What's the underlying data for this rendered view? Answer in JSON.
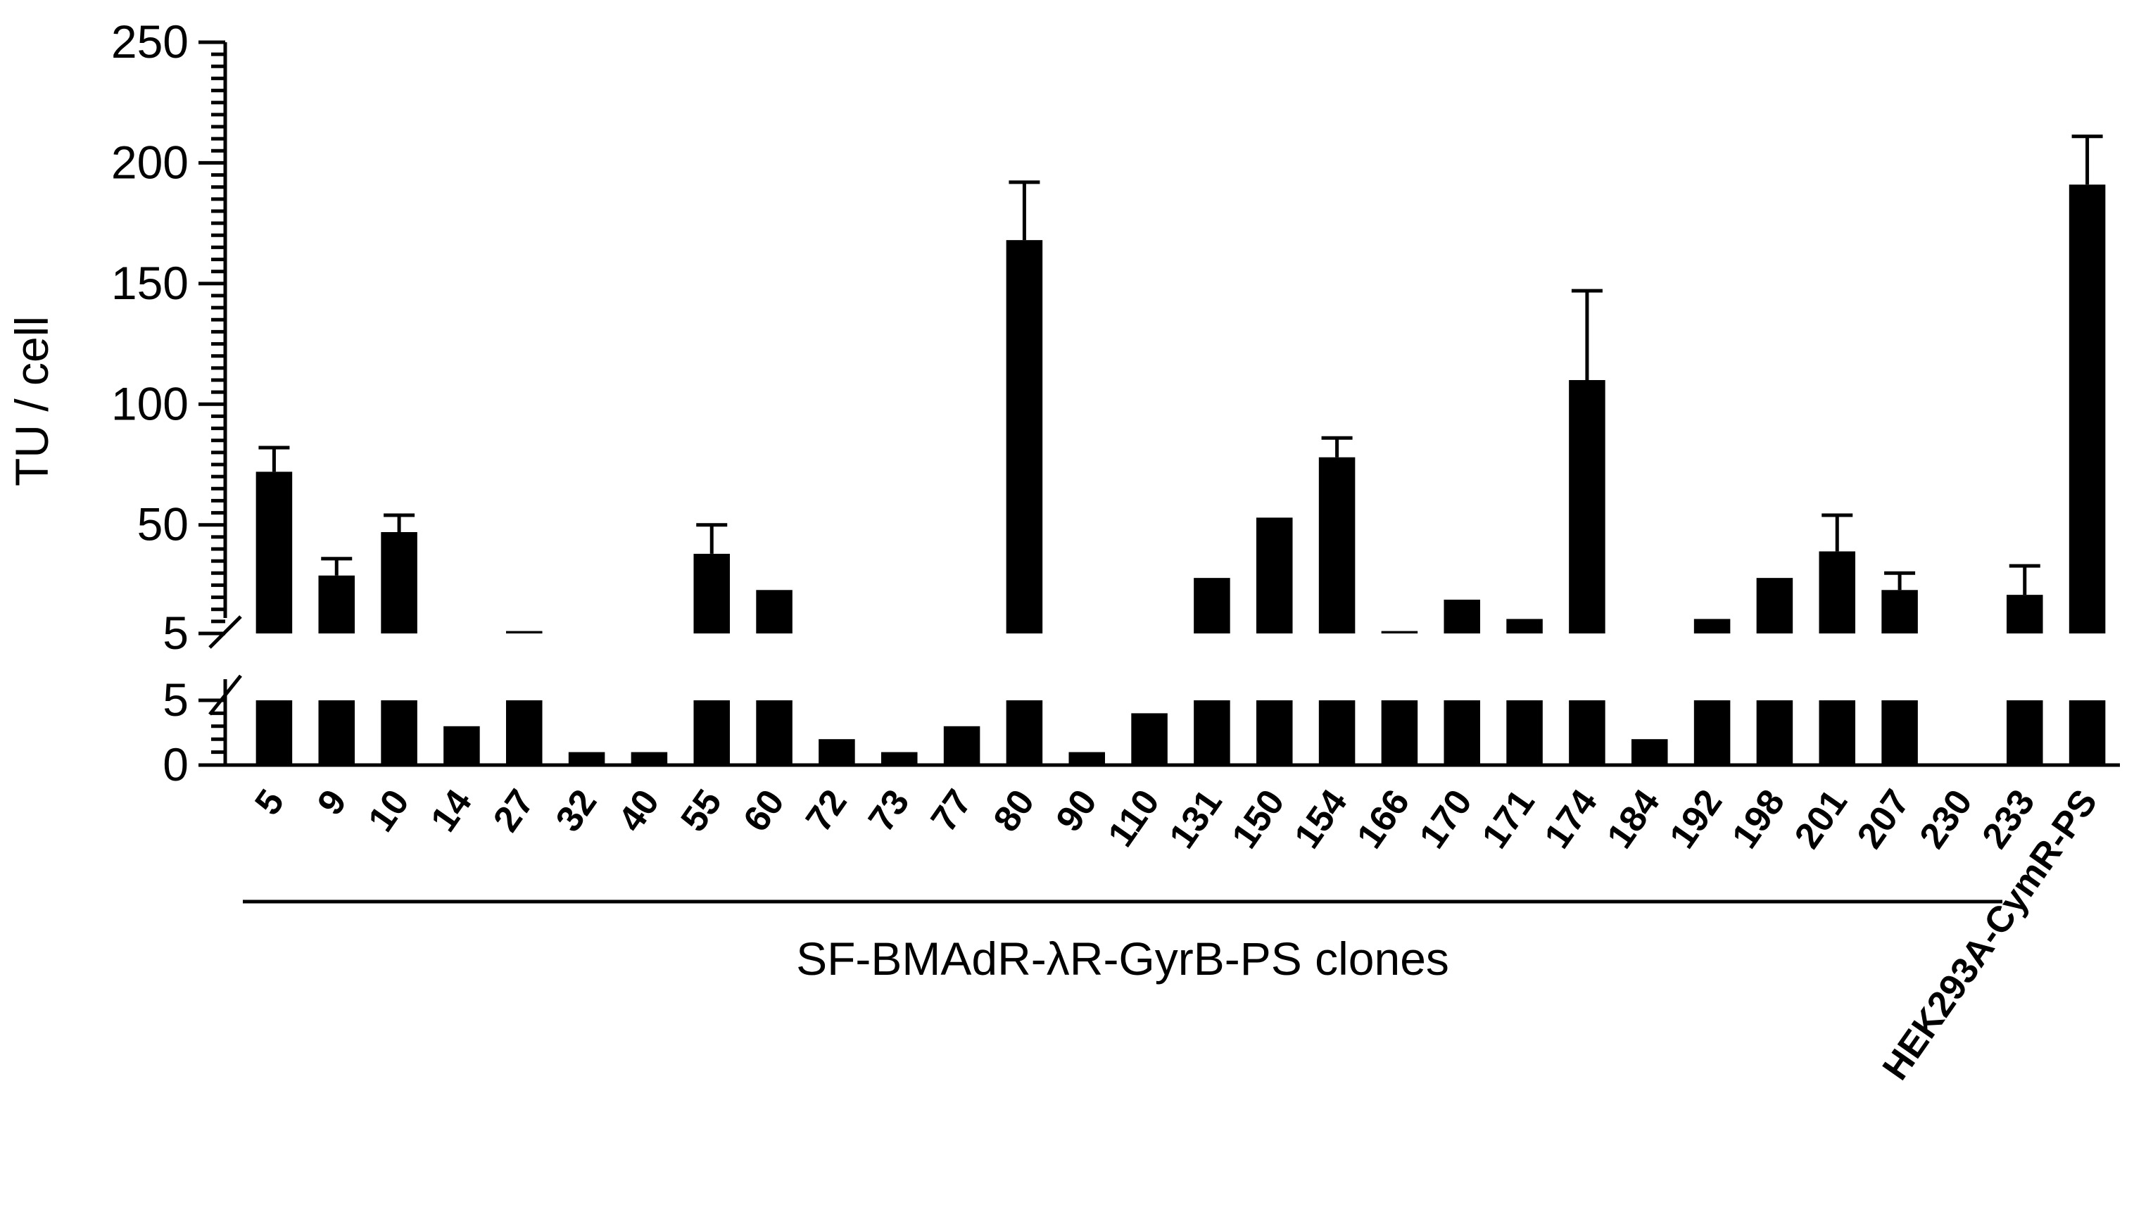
{
  "chart_data": {
    "type": "bar",
    "title": "",
    "ylabel": "TU / cell",
    "group_label": "SF-BMAdR-λR-GyrB-PS clones",
    "categories": [
      "5",
      "9",
      "10",
      "14",
      "27",
      "32",
      "40",
      "55",
      "60",
      "72",
      "73",
      "77",
      "80",
      "90",
      "110",
      "131",
      "150",
      "154",
      "166",
      "170",
      "171",
      "174",
      "184",
      "192",
      "198",
      "201",
      "207",
      "230",
      "233",
      "HEK293A-CymR-PS"
    ],
    "values": [
      72,
      29,
      47,
      3,
      6,
      1,
      1,
      38,
      23,
      2,
      1,
      3,
      168,
      1,
      4,
      28,
      53,
      78,
      6,
      19,
      11,
      110,
      2,
      11,
      28,
      39,
      23,
      0,
      21,
      191
    ],
    "error": [
      10,
      7,
      7,
      0,
      0,
      0,
      0,
      12,
      0,
      0,
      0,
      0,
      24,
      0,
      0,
      0,
      0,
      8,
      0,
      0,
      0,
      37,
      0,
      0,
      0,
      15,
      7,
      0,
      12,
      20
    ],
    "y_axis_upper": {
      "ylim": [
        5,
        250
      ],
      "ticks": [
        "5",
        "50",
        "100",
        "150",
        "200",
        "250"
      ]
    },
    "y_axis_lower": {
      "ylim": [
        0,
        5
      ],
      "ticks": [
        "0",
        "5"
      ]
    },
    "broken_axis": true,
    "grid": false,
    "bar_color": "#000000"
  }
}
